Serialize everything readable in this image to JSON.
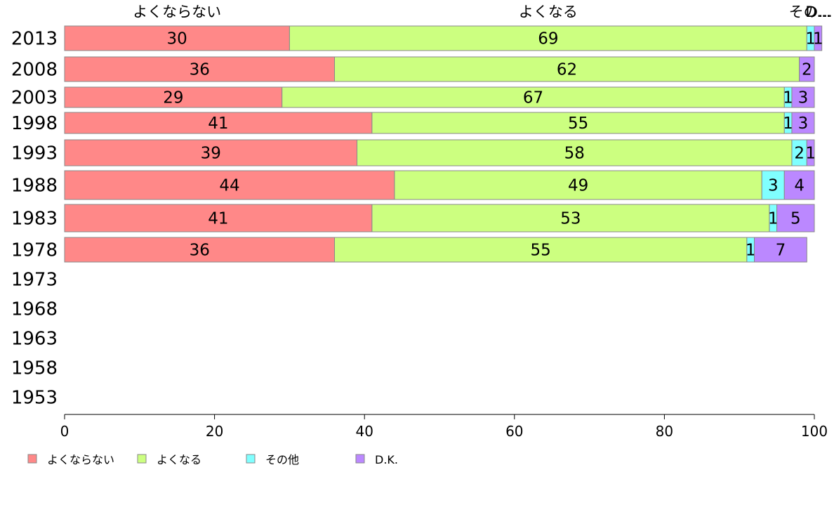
{
  "chart_data": {
    "type": "bar",
    "orientation": "horizontal",
    "stacked": true,
    "categories": [
      "2013",
      "2008",
      "2003",
      "1998",
      "1993",
      "1988",
      "1983",
      "1978",
      "1973",
      "1968",
      "1963",
      "1958",
      "1953"
    ],
    "series": [
      {
        "name": "よくならない",
        "color": "#ff8888",
        "values": [
          30,
          36,
          29,
          41,
          39,
          44,
          41,
          36,
          null,
          null,
          null,
          null,
          null
        ]
      },
      {
        "name": "よくなる",
        "color": "#ccff80",
        "values": [
          69,
          62,
          67,
          55,
          58,
          49,
          53,
          55,
          null,
          null,
          null,
          null,
          null
        ]
      },
      {
        "name": "その他",
        "color": "#80ffff",
        "values": [
          1,
          0,
          1,
          1,
          2,
          3,
          1,
          1,
          null,
          null,
          null,
          null,
          null
        ]
      },
      {
        "name": "D.K.",
        "color": "#bb88ff",
        "values": [
          1,
          2,
          3,
          3,
          1,
          4,
          5,
          7,
          null,
          null,
          null,
          null,
          null
        ]
      }
    ],
    "segment_headers": [
      "よくならない",
      "よくなる",
      "その...",
      "D..."
    ],
    "x_ticks": [
      "0",
      "20",
      "40",
      "60",
      "80",
      "100"
    ],
    "xlim": [
      0,
      100
    ],
    "legend_position": "bottom-left",
    "grid": false
  }
}
